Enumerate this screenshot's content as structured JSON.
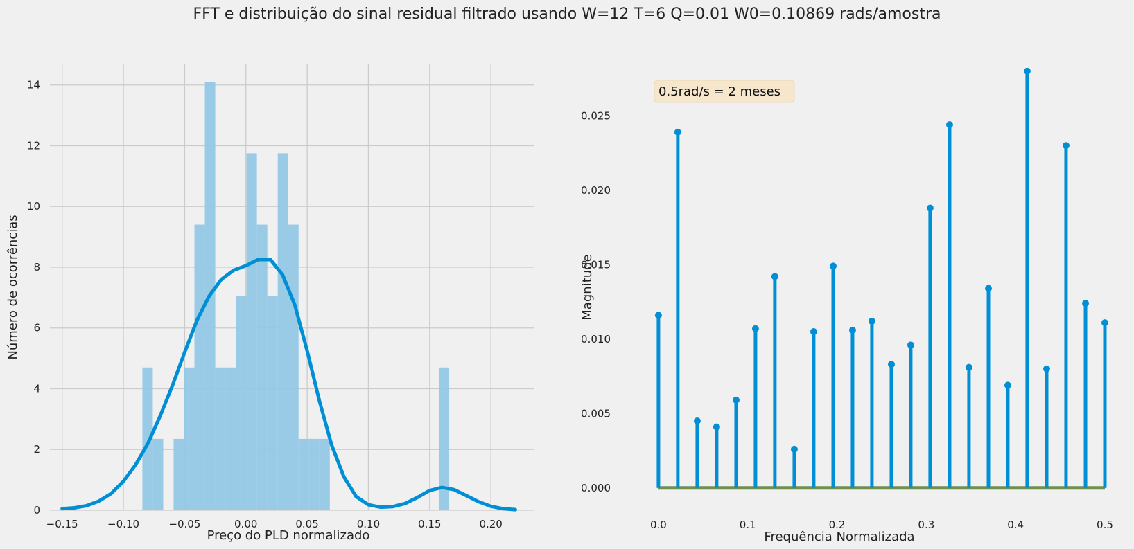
{
  "figure": {
    "suptitle": "FFT e distribuição do sinal residual filtrado usando W=12 T=6 Q=0.01 W0=0.10869 rads/amostra"
  },
  "chart_data": [
    {
      "type": "bar",
      "subtype": "histogram-with-kde",
      "xlabel": "Preço do PLD normalizado",
      "ylabel": "Número de ocorrências",
      "xlim": [
        -0.16,
        0.235
      ],
      "ylim": [
        0,
        14.7
      ],
      "xticks": [
        -0.15,
        -0.1,
        -0.05,
        0.0,
        0.05,
        0.1,
        0.15,
        0.2
      ],
      "xtick_labels": [
        "−0.15",
        "−0.10",
        "−0.05",
        "0.00",
        "0.05",
        "0.10",
        "0.15",
        "0.20"
      ],
      "yticks": [
        0,
        2,
        4,
        6,
        8,
        10,
        12,
        14
      ],
      "ytick_labels": [
        "0",
        "2",
        "4",
        "6",
        "8",
        "10",
        "12",
        "14"
      ],
      "grid": true,
      "bar_color": "#93c8e6",
      "kde_color": "#008fd5",
      "bins": [
        {
          "x0": -0.0845,
          "x1": -0.076,
          "count": 4.7
        },
        {
          "x0": -0.076,
          "x1": -0.0675,
          "count": 2.35
        },
        {
          "x0": -0.0675,
          "x1": -0.059,
          "count": 0
        },
        {
          "x0": -0.059,
          "x1": -0.0505,
          "count": 2.35
        },
        {
          "x0": -0.0505,
          "x1": -0.042,
          "count": 4.7
        },
        {
          "x0": -0.042,
          "x1": -0.0335,
          "count": 9.4
        },
        {
          "x0": -0.0335,
          "x1": -0.025,
          "count": 14.1
        },
        {
          "x0": -0.025,
          "x1": -0.0165,
          "count": 4.7
        },
        {
          "x0": -0.0165,
          "x1": -0.008,
          "count": 4.7
        },
        {
          "x0": -0.008,
          "x1": 0.0005,
          "count": 7.05
        },
        {
          "x0": 0.0005,
          "x1": 0.009,
          "count": 11.75
        },
        {
          "x0": 0.009,
          "x1": 0.0175,
          "count": 9.4
        },
        {
          "x0": 0.0175,
          "x1": 0.026,
          "count": 7.05
        },
        {
          "x0": 0.026,
          "x1": 0.0345,
          "count": 11.75
        },
        {
          "x0": 0.0345,
          "x1": 0.043,
          "count": 9.4
        },
        {
          "x0": 0.043,
          "x1": 0.0515,
          "count": 2.35
        },
        {
          "x0": 0.0515,
          "x1": 0.06,
          "count": 2.35
        },
        {
          "x0": 0.06,
          "x1": 0.0685,
          "count": 2.35
        },
        {
          "x0": 0.1575,
          "x1": 0.166,
          "count": 4.7
        }
      ],
      "kde": {
        "x": [
          -0.15,
          -0.14,
          -0.13,
          -0.12,
          -0.11,
          -0.1,
          -0.09,
          -0.08,
          -0.07,
          -0.06,
          -0.05,
          -0.04,
          -0.03,
          -0.02,
          -0.01,
          0.0,
          0.01,
          0.02,
          0.03,
          0.04,
          0.05,
          0.06,
          0.07,
          0.08,
          0.09,
          0.1,
          0.11,
          0.12,
          0.13,
          0.14,
          0.15,
          0.16,
          0.17,
          0.18,
          0.19,
          0.2,
          0.21,
          0.22
        ],
        "y": [
          0.05,
          0.08,
          0.15,
          0.3,
          0.55,
          0.95,
          1.5,
          2.2,
          3.1,
          4.1,
          5.2,
          6.25,
          7.05,
          7.6,
          7.9,
          8.05,
          8.25,
          8.25,
          7.75,
          6.75,
          5.25,
          3.6,
          2.15,
          1.1,
          0.45,
          0.18,
          0.1,
          0.12,
          0.22,
          0.42,
          0.65,
          0.75,
          0.68,
          0.48,
          0.28,
          0.13,
          0.05,
          0.02
        ]
      }
    },
    {
      "type": "stem",
      "annotation": "0.5rad/s = 2 meses",
      "xlabel": "Frequência Normalizada",
      "ylabel": "Magnitude",
      "xlim": [
        -0.017,
        0.507
      ],
      "ylim": [
        -0.0015,
        0.0285
      ],
      "xticks": [
        0.0,
        0.1,
        0.2,
        0.3,
        0.4,
        0.5
      ],
      "xtick_labels": [
        "0.0",
        "0.1",
        "0.2",
        "0.3",
        "0.4",
        "0.5"
      ],
      "yticks": [
        0.0,
        0.005,
        0.01,
        0.015,
        0.02,
        0.025
      ],
      "ytick_labels": [
        "0.000",
        "0.005",
        "0.010",
        "0.015",
        "0.020",
        "0.025"
      ],
      "grid": false,
      "stem_color": "#008fd5",
      "baseline_color": "#6d904f",
      "x": [
        0.0,
        0.0217,
        0.0435,
        0.0652,
        0.087,
        0.1087,
        0.1304,
        0.1522,
        0.1739,
        0.1957,
        0.2174,
        0.2391,
        0.2609,
        0.2826,
        0.3043,
        0.3261,
        0.3478,
        0.3696,
        0.3913,
        0.413,
        0.4348,
        0.4565,
        0.4783,
        0.5
      ],
      "y": [
        0.0116,
        0.0239,
        0.0045,
        0.0041,
        0.0059,
        0.0107,
        0.0142,
        0.0026,
        0.0105,
        0.0149,
        0.0106,
        0.0112,
        0.0083,
        0.0096,
        0.0188,
        0.0244,
        0.0081,
        0.0134,
        0.0069,
        0.028,
        0.008,
        0.023,
        0.0124,
        0.0111
      ]
    }
  ]
}
